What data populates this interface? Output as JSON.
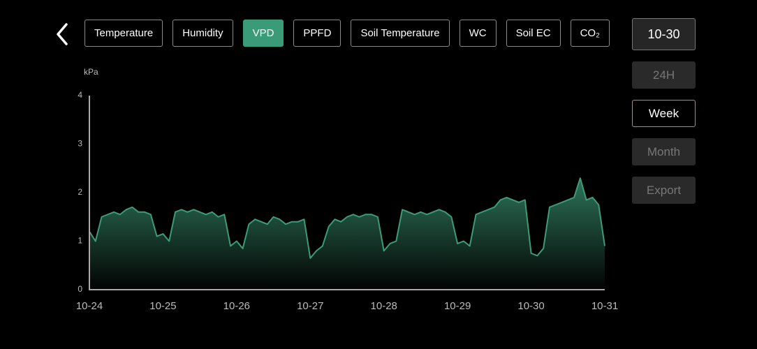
{
  "tabs": [
    "Temperature",
    "Humidity",
    "VPD",
    "PPFD",
    "Soil Temperature",
    "WC",
    "Soil EC",
    "CO₂"
  ],
  "selected_tab": 2,
  "date": "10-30",
  "ranges": [
    "24H",
    "Week",
    "Month",
    "Export"
  ],
  "selected_range": 1,
  "chart_data": {
    "type": "area",
    "y_label": "kPa",
    "x": [
      0,
      2,
      4,
      6,
      8,
      10,
      12,
      14,
      16,
      18,
      20,
      22,
      24,
      26,
      28,
      30,
      32,
      34,
      36,
      38,
      40,
      42,
      44,
      46,
      48,
      50,
      52,
      54,
      56,
      58,
      60,
      62,
      64,
      66,
      68,
      70,
      72,
      74,
      76,
      78,
      80,
      82,
      84,
      86,
      88,
      90,
      92,
      94,
      96,
      98,
      100,
      102,
      104,
      106,
      108,
      110,
      112,
      114,
      116,
      118,
      120,
      122,
      124,
      126,
      128,
      130,
      132,
      134,
      136,
      138,
      140,
      142,
      144,
      146,
      148,
      150,
      152,
      154,
      156,
      158,
      160,
      162,
      164,
      166,
      168
    ],
    "series": [
      {
        "color": "#3d9b78",
        "values": [
          1.2,
          1.0,
          1.5,
          1.55,
          1.6,
          1.55,
          1.65,
          1.7,
          1.6,
          1.6,
          1.55,
          1.1,
          1.15,
          1.0,
          1.6,
          1.65,
          1.6,
          1.65,
          1.6,
          1.55,
          1.6,
          1.5,
          1.55,
          0.9,
          1.0,
          0.85,
          1.35,
          1.45,
          1.4,
          1.35,
          1.5,
          1.45,
          1.35,
          1.4,
          1.4,
          1.45,
          0.65,
          0.8,
          0.9,
          1.3,
          1.45,
          1.4,
          1.5,
          1.55,
          1.5,
          1.55,
          1.55,
          1.5,
          0.8,
          0.95,
          1.0,
          1.65,
          1.6,
          1.55,
          1.6,
          1.55,
          1.6,
          1.65,
          1.6,
          1.5,
          0.95,
          1.0,
          0.9,
          1.55,
          1.6,
          1.65,
          1.7,
          1.85,
          1.9,
          1.85,
          1.8,
          1.85,
          0.75,
          0.7,
          0.85,
          1.7,
          1.75,
          1.8,
          1.85,
          1.9,
          2.3,
          1.85,
          1.9,
          1.75,
          0.9
        ]
      }
    ],
    "xlim": [
      0,
      168
    ],
    "xticks": [
      {
        "value": 0,
        "label": "10-24"
      },
      {
        "value": 24,
        "label": "10-25"
      },
      {
        "value": 48,
        "label": "10-26"
      },
      {
        "value": 72,
        "label": "10-27"
      },
      {
        "value": 96,
        "label": "10-28"
      },
      {
        "value": 120,
        "label": "10-29"
      },
      {
        "value": 144,
        "label": "10-30"
      },
      {
        "value": 168,
        "label": "10-31"
      }
    ],
    "ylim": [
      0,
      4
    ],
    "yticks": [
      0,
      1,
      2,
      3,
      4
    ]
  }
}
